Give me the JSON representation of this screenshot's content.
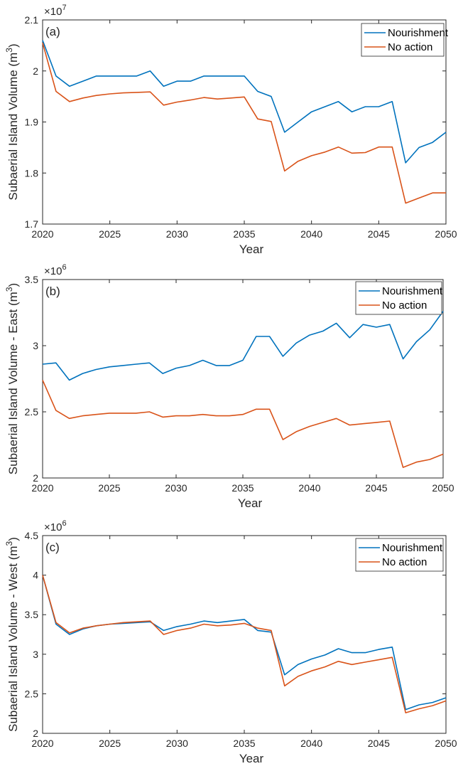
{
  "chart_data": [
    {
      "type": "line",
      "panel_label": "(a)",
      "scale_label": "×10",
      "scale_exp": "7",
      "ylabel": "Subaerial Island Volume (m",
      "ylabel_sup": "3",
      "ylabel_end": ")",
      "xlabel": "Year",
      "xlim": [
        2020,
        2050
      ],
      "ylim": [
        1.7,
        2.1
      ],
      "xticks": [
        "2020",
        "2025",
        "2030",
        "2035",
        "2040",
        "2045",
        "2050"
      ],
      "yticks": [
        "1.7",
        "1.8",
        "1.9",
        "2",
        "2.1"
      ],
      "legend_position": "top-right",
      "x": [
        2020,
        2021,
        2022,
        2023,
        2024,
        2025,
        2026,
        2027,
        2028,
        2029,
        2030,
        2031,
        2032,
        2033,
        2034,
        2035,
        2036,
        2037,
        2038,
        2039,
        2040,
        2041,
        2042,
        2043,
        2044,
        2045,
        2046,
        2047,
        2048,
        2049,
        2050
      ],
      "series": [
        {
          "name": "Nourishment",
          "color": "#0072BD",
          "values": [
            2.06,
            1.99,
            1.97,
            1.98,
            1.99,
            1.99,
            1.99,
            1.99,
            2.0,
            1.97,
            1.98,
            1.98,
            1.99,
            1.99,
            1.99,
            1.99,
            1.96,
            1.95,
            1.88,
            1.9,
            1.92,
            1.93,
            1.94,
            1.92,
            1.93,
            1.93,
            1.94,
            1.82,
            1.85,
            1.86,
            1.88
          ]
        },
        {
          "name": "No action",
          "color": "#D95319",
          "values": [
            2.055,
            1.96,
            1.94,
            1.947,
            1.952,
            1.955,
            1.957,
            1.958,
            1.959,
            1.933,
            1.939,
            1.943,
            1.948,
            1.945,
            1.947,
            1.949,
            1.906,
            1.901,
            1.804,
            1.823,
            1.834,
            1.841,
            1.851,
            1.839,
            1.84,
            1.851,
            1.851,
            1.741,
            1.751,
            1.761,
            1.761
          ]
        }
      ]
    },
    {
      "type": "line",
      "panel_label": "(b)",
      "scale_label": "×10",
      "scale_exp": "6",
      "ylabel": "Subaerial Island Volume - East (m",
      "ylabel_sup": "3",
      "ylabel_end": ")",
      "xlabel": "Year",
      "xlim": [
        2020,
        2050
      ],
      "ylim": [
        2.0,
        3.5
      ],
      "xticks": [
        "2020",
        "2025",
        "2030",
        "2035",
        "2040",
        "2045",
        "2050"
      ],
      "yticks": [
        "2",
        "2.5",
        "3",
        "3.5"
      ],
      "legend_position": "top-right",
      "x": [
        2020,
        2021,
        2022,
        2023,
        2024,
        2025,
        2026,
        2027,
        2028,
        2029,
        2030,
        2031,
        2032,
        2033,
        2034,
        2035,
        2036,
        2037,
        2038,
        2039,
        2040,
        2041,
        2042,
        2043,
        2044,
        2045,
        2046,
        2047,
        2048,
        2049,
        2050
      ],
      "series": [
        {
          "name": "Nourishment",
          "color": "#0072BD",
          "values": [
            2.86,
            2.87,
            2.74,
            2.79,
            2.82,
            2.84,
            2.85,
            2.86,
            2.87,
            2.79,
            2.83,
            2.85,
            2.89,
            2.85,
            2.85,
            2.89,
            3.07,
            3.07,
            2.92,
            3.02,
            3.08,
            3.11,
            3.17,
            3.06,
            3.16,
            3.14,
            3.16,
            2.9,
            3.03,
            3.12,
            3.26
          ]
        },
        {
          "name": "No action",
          "color": "#D95319",
          "values": [
            2.74,
            2.51,
            2.45,
            2.47,
            2.48,
            2.49,
            2.49,
            2.49,
            2.5,
            2.46,
            2.47,
            2.47,
            2.48,
            2.47,
            2.47,
            2.48,
            2.52,
            2.52,
            2.29,
            2.35,
            2.39,
            2.42,
            2.45,
            2.4,
            2.41,
            2.42,
            2.43,
            2.08,
            2.12,
            2.14,
            2.18
          ]
        }
      ]
    },
    {
      "type": "line",
      "panel_label": "(c)",
      "scale_label": "×10",
      "scale_exp": "6",
      "ylabel": "Subaerial Island Volume - West (m",
      "ylabel_sup": "3",
      "ylabel_end": ")",
      "xlabel": "Year",
      "xlim": [
        2020,
        2050
      ],
      "ylim": [
        2.0,
        4.5
      ],
      "xticks": [
        "2020",
        "2025",
        "2030",
        "2035",
        "2040",
        "2045",
        "2050"
      ],
      "yticks": [
        "2",
        "2.5",
        "3",
        "3.5",
        "4",
        "4.5"
      ],
      "legend_position": "top-right",
      "x": [
        2020,
        2021,
        2022,
        2023,
        2024,
        2025,
        2026,
        2027,
        2028,
        2029,
        2030,
        2031,
        2032,
        2033,
        2034,
        2035,
        2036,
        2037,
        2038,
        2039,
        2040,
        2041,
        2042,
        2043,
        2044,
        2045,
        2046,
        2047,
        2048,
        2049,
        2050
      ],
      "series": [
        {
          "name": "Nourishment",
          "color": "#0072BD",
          "values": [
            4.0,
            3.38,
            3.25,
            3.32,
            3.36,
            3.38,
            3.39,
            3.4,
            3.41,
            3.3,
            3.35,
            3.38,
            3.42,
            3.4,
            3.42,
            3.44,
            3.3,
            3.28,
            2.74,
            2.87,
            2.94,
            2.99,
            3.07,
            3.02,
            3.02,
            3.06,
            3.09,
            2.3,
            2.36,
            2.39,
            2.45
          ]
        },
        {
          "name": "No action",
          "color": "#D95319",
          "values": [
            4.0,
            3.4,
            3.27,
            3.33,
            3.36,
            3.38,
            3.4,
            3.41,
            3.42,
            3.25,
            3.3,
            3.33,
            3.38,
            3.36,
            3.37,
            3.39,
            3.33,
            3.3,
            2.6,
            2.72,
            2.79,
            2.84,
            2.91,
            2.87,
            2.9,
            2.93,
            2.96,
            2.26,
            2.31,
            2.35,
            2.41
          ]
        }
      ]
    }
  ]
}
